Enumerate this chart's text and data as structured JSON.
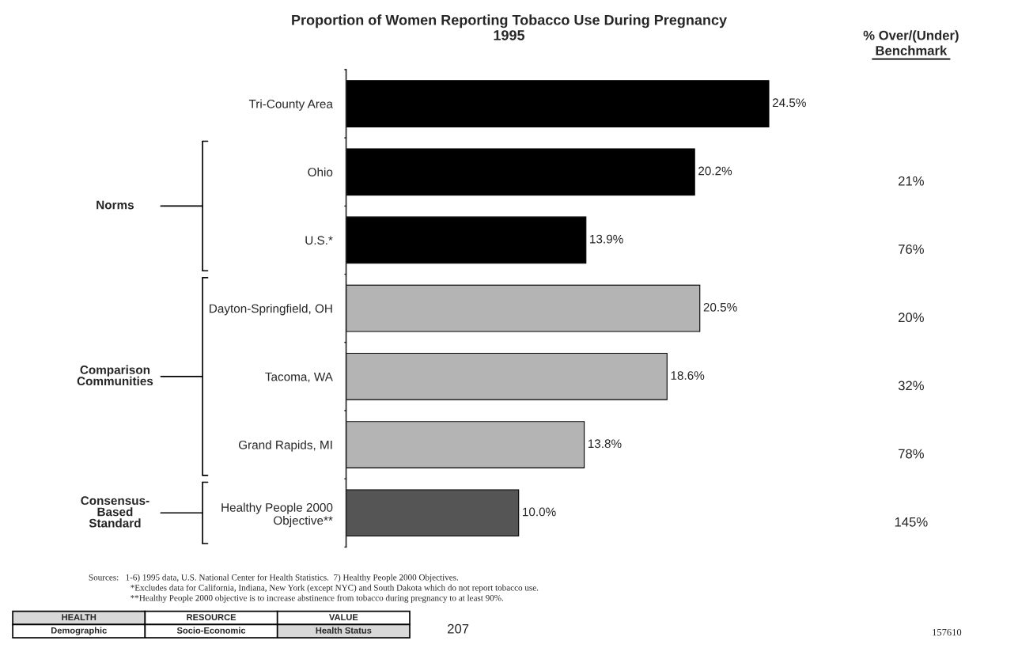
{
  "chart_data": {
    "type": "bar",
    "orientation": "horizontal",
    "title": "Proportion of Women Reporting Tobacco Use During Pregnancy",
    "subtitle": "1995",
    "categories": [
      "Tri-County Area",
      "Ohio",
      "U.S.*",
      "Dayton-Springfield, OH",
      "Tacoma, WA",
      "Grand Rapids, MI",
      "Healthy People 2000\nObjective**"
    ],
    "values": [
      24.5,
      20.2,
      13.9,
      20.5,
      18.6,
      13.8,
      10.0
    ],
    "colors": [
      "#000000",
      "#000000",
      "#000000",
      "#b4b4b4",
      "#b4b4b4",
      "#b4b4b4",
      "#555555"
    ],
    "value_labels": [
      "24.5%",
      "20.2%",
      "13.9%",
      "20.5%",
      "18.6%",
      "13.8%",
      "10.0%"
    ],
    "grid": false,
    "legend": false,
    "annotations": [
      "% Over/(Under)",
      "Benchmark",
      "21%",
      "76%",
      "20%",
      "32%",
      "78%",
      "145%",
      "Norms",
      "Comparison\nCommunities",
      "Consensus-\nBased\nStandard",
      "Sources:   1-6) 1995 data, U.S. National Center for Health Statistics.  7) Healthy People 2000 Objectives.",
      "*Excludes data for California, Indiana, New York (except NYC) and South Dakota which do not report tobacco use.",
      "**Healthy People 2000 objective is to increase abstinence from tobacco during pregnancy to at least 90%.",
      "HEALTH",
      "RESOURCE",
      "VALUE",
      "Demographic",
      "Socio-Economic",
      "Health Status",
      "207",
      "157610"
    ]
  }
}
